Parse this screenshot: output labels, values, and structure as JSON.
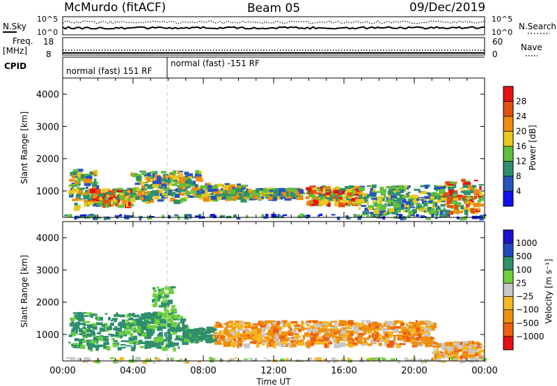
{
  "header": {
    "station": "McMurdo (fitACF)",
    "beam": "Beam 05",
    "date": "09/Dec/2019"
  },
  "strip": {
    "nsky_label": "N.Sky",
    "nsearch_label": "N.Search",
    "noise_ticks": [
      "10^5",
      "10^0"
    ],
    "freq_label": "Freq.",
    "freq_unit": "[MHz]",
    "freq_ticks": [
      "18",
      "8"
    ],
    "nave_label": "Nave",
    "nave_ticks": [
      "60",
      "0"
    ],
    "cpid_label": "CPID",
    "cpid_segments": [
      {
        "label": "normal (fast) 151 RF",
        "start_hour": 0,
        "end_hour": 6
      },
      {
        "label": "normal (fast) -151 RF",
        "start_hour": 6,
        "end_hour": 24
      }
    ]
  },
  "chart_data": [
    {
      "type": "heatmap",
      "title": "",
      "xlabel": "",
      "ylabel": "Slant Range [km]",
      "xlim": [
        0,
        24
      ],
      "ylim": [
        180,
        4500
      ],
      "y_ticks": [
        "1000",
        "2000",
        "3000",
        "4000"
      ],
      "colorbar": {
        "label": "Power [dB]",
        "ticks": [
          "4",
          "8",
          "12",
          "16",
          "20",
          "24",
          "28"
        ],
        "range": [
          0,
          30
        ],
        "colors": [
          "#1010ee",
          "#2852c0",
          "#2f8f6c",
          "#5fbf3c",
          "#e8c81e",
          "#f08a10",
          "#e05010",
          "#e81010"
        ]
      },
      "echo_regions": [
        {
          "t0": 0.3,
          "t1": 2.0,
          "r0": 520,
          "r1": 1700,
          "level": "mid"
        },
        {
          "t0": 1.4,
          "t1": 3.8,
          "r0": 600,
          "r1": 1100,
          "level": "high"
        },
        {
          "t0": 3.8,
          "t1": 7.8,
          "r0": 720,
          "r1": 1650,
          "level": "mid"
        },
        {
          "t0": 7.8,
          "t1": 10.2,
          "r0": 780,
          "r1": 1250,
          "level": "mid"
        },
        {
          "t0": 10.2,
          "t1": 13.5,
          "r0": 800,
          "r1": 1100,
          "level": "mid"
        },
        {
          "t0": 13.8,
          "t1": 16.8,
          "r0": 620,
          "r1": 1180,
          "level": "high"
        },
        {
          "t0": 16.8,
          "t1": 21.5,
          "r0": 330,
          "r1": 1200,
          "level": "low"
        },
        {
          "t0": 21.5,
          "t1": 23.7,
          "r0": 330,
          "r1": 1380,
          "level": "high"
        },
        {
          "t0": 0.0,
          "t1": 24.0,
          "r0": 180,
          "r1": 300,
          "level": "ground"
        }
      ]
    },
    {
      "type": "heatmap",
      "title": "",
      "xlabel": "Time UT",
      "ylabel": "Slant Range [km]",
      "xlim": [
        0,
        24
      ],
      "ylim": [
        180,
        4500
      ],
      "x_ticks": [
        "00:00",
        "04:00",
        "08:00",
        "12:00",
        "16:00",
        "20:00",
        "00:00"
      ],
      "y_ticks": [
        "1000",
        "2000",
        "3000",
        "4000"
      ],
      "colorbar": {
        "label": "Velocity [m s⁻¹]",
        "ticks": [
          "1000",
          "500",
          "100",
          "25",
          "−25",
          "−100",
          "−500",
          "−1000"
        ],
        "range": [
          -1200,
          1200
        ],
        "colors": [
          "#e81010",
          "#f06010",
          "#f09010",
          "#f5b820",
          "#c8c8c8",
          "#6cd03c",
          "#2f8f6c",
          "#2448c0",
          "#1a10d0"
        ]
      },
      "echo_regions": [
        {
          "t0": 0.3,
          "t1": 6.8,
          "r0": 600,
          "r1": 1700,
          "level": "positive"
        },
        {
          "t0": 5.0,
          "t1": 6.2,
          "r0": 1400,
          "r1": 2500,
          "level": "positive-light"
        },
        {
          "t0": 6.8,
          "t1": 8.5,
          "r0": 850,
          "r1": 1250,
          "level": "positive"
        },
        {
          "t0": 8.5,
          "t1": 21.0,
          "r0": 700,
          "r1": 1450,
          "level": "negative"
        },
        {
          "t0": 21.0,
          "t1": 23.7,
          "r0": 300,
          "r1": 800,
          "level": "negative"
        },
        {
          "t0": 0.0,
          "t1": 24.0,
          "r0": 180,
          "r1": 300,
          "level": "ground"
        }
      ]
    }
  ]
}
